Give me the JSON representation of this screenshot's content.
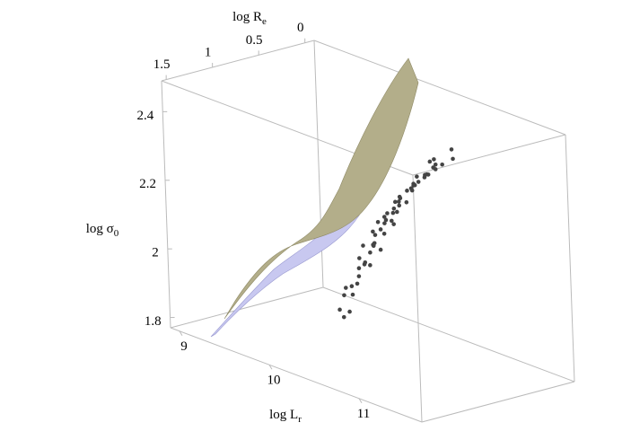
{
  "chart_data": {
    "type": "scatter3d",
    "xlabel": {
      "text": "log L",
      "sub": "r"
    },
    "ylabel": {
      "text": "log R",
      "sub": "e"
    },
    "zlabel": {
      "text": "log σ",
      "sub": "0"
    },
    "xlim": [
      8.9,
      11.7
    ],
    "ylim": [
      1.55,
      -0.1
    ],
    "zlim": [
      1.77,
      2.49
    ],
    "xticks": [
      9,
      10,
      11
    ],
    "yticks": [
      0,
      0.5,
      1,
      1.5
    ],
    "zticks": [
      1.8,
      2,
      2.2,
      2.4
    ],
    "color": "#444444",
    "x": [
      10.4,
      10.45,
      10.5,
      10.42,
      10.55,
      10.6,
      10.58,
      10.65,
      10.62,
      10.7,
      10.68,
      10.72,
      10.75,
      10.78,
      10.8,
      10.82,
      10.85,
      10.88,
      10.9,
      10.92,
      10.95,
      10.97,
      11.0,
      11.02,
      11.05,
      11.07,
      11.1,
      11.12,
      11.15,
      11.18,
      11.2,
      11.22,
      11.25,
      11.28,
      11.3,
      11.33,
      11.35,
      11.38,
      11.4,
      11.42,
      10.85,
      10.95,
      11.05,
      11.15,
      10.75,
      10.9,
      11.0,
      11.1,
      10.5,
      10.6,
      10.35,
      10.7,
      11.2,
      11.25,
      10.8,
      11.08,
      10.65,
      10.98,
      11.3,
      10.88
    ],
    "y": [
      1.1,
      1.2,
      1.05,
      0.95,
      1.15,
      1.0,
      1.25,
      1.1,
      0.9,
      1.05,
      1.2,
      0.95,
      1.1,
      1.0,
      1.15,
      0.9,
      1.05,
      1.2,
      0.95,
      1.1,
      1.0,
      1.25,
      0.9,
      1.05,
      1.15,
      0.95,
      1.05,
      1.2,
      0.9,
      1.0,
      1.1,
      0.85,
      1.0,
      1.15,
      0.95,
      1.05,
      0.9,
      1.0,
      1.1,
      0.85,
      1.35,
      1.4,
      1.3,
      1.35,
      0.8,
      0.75,
      0.7,
      0.75,
      0.9,
      1.3,
      1.0,
      1.3,
      1.3,
      0.7,
      1.25,
      1.4,
      0.8,
      0.85,
      1.25,
      1.0
    ],
    "z": [
      1.98,
      1.95,
      2.02,
      2.05,
      2.0,
      2.08,
      2.03,
      2.1,
      2.12,
      2.15,
      2.07,
      2.18,
      2.2,
      2.22,
      2.17,
      2.25,
      2.24,
      2.21,
      2.28,
      2.27,
      2.3,
      2.26,
      2.33,
      2.32,
      2.3,
      2.36,
      2.35,
      2.33,
      2.39,
      2.38,
      2.37,
      2.41,
      2.4,
      2.39,
      2.43,
      2.42,
      2.44,
      2.45,
      2.43,
      2.46,
      2.15,
      2.2,
      2.25,
      2.3,
      2.28,
      2.35,
      2.4,
      2.42,
      2.1,
      1.95,
      1.92,
      2.05,
      2.28,
      2.46,
      2.12,
      2.22,
      2.2,
      2.34,
      2.35,
      2.26
    ]
  }
}
